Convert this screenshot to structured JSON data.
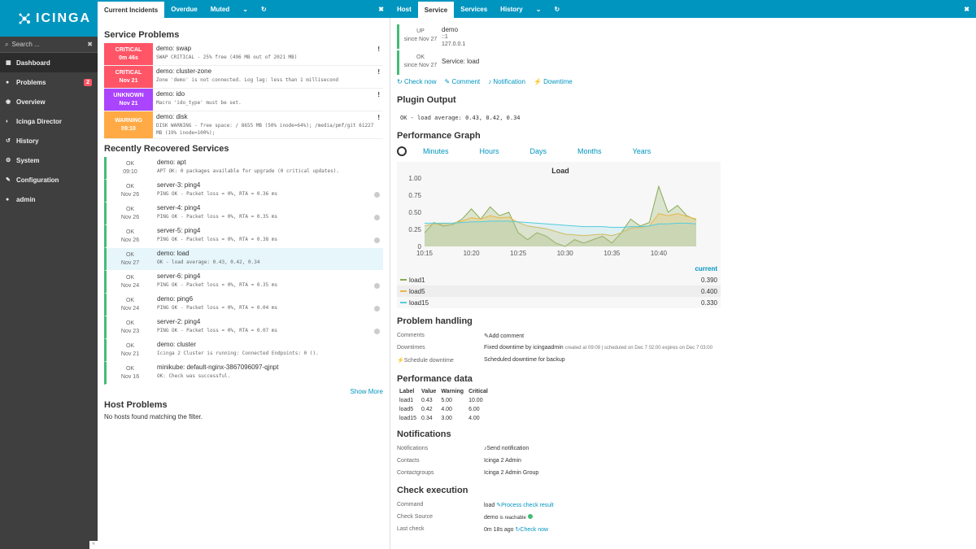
{
  "app": {
    "logo": "ICINGA"
  },
  "sidebar": {
    "search_placeholder": "Search ...",
    "items": [
      {
        "label": "Dashboard",
        "icon": "dashboard-icon",
        "active": true
      },
      {
        "label": "Problems",
        "icon": "problems-icon",
        "badge": "2"
      },
      {
        "label": "Overview",
        "icon": "overview-icon"
      },
      {
        "label": "Icinga Director",
        "icon": "director-icon"
      },
      {
        "label": "History",
        "icon": "history-icon"
      },
      {
        "label": "System",
        "icon": "system-icon"
      },
      {
        "label": "Configuration",
        "icon": "wrench-icon"
      },
      {
        "label": "admin",
        "icon": "user-icon"
      }
    ]
  },
  "tabs_left": [
    "Current Incidents",
    "Overdue",
    "Muted"
  ],
  "tabs_right": [
    "Host",
    "Service",
    "Services",
    "History"
  ],
  "service_problems": {
    "title": "Service Problems",
    "rows": [
      {
        "state": "CRITICAL",
        "since": "0m 46s",
        "name": "demo: swap",
        "output": "SWAP CRITICAL - 25% free (496 MB out of 2021 MB)"
      },
      {
        "state": "CRITICAL",
        "since": "Nov 21",
        "name": "demo: cluster-zone",
        "output": "Zone 'demo' is not connected. Log lag: less than 1 millisecond"
      },
      {
        "state": "UNKNOWN",
        "since": "Nov 21",
        "name": "demo: ido",
        "output": "Macro 'ido_type' must be set."
      },
      {
        "state": "WARNING",
        "since": "09:10",
        "name": "demo: disk",
        "output": "DISK WARNING - free space: / 8655 MB (50% inode=64%); /media/pmf/git 61227 MB (19% inode=100%);"
      }
    ]
  },
  "recovered": {
    "title": "Recently Recovered Services",
    "show_more": "Show More",
    "rows": [
      {
        "state": "OK",
        "since": "09:10",
        "name": "demo: apt",
        "output": "APT OK: 0 packages available for upgrade (0 critical updates)."
      },
      {
        "state": "OK",
        "since": "Nov 26",
        "name": "server-3: ping4",
        "output": "PING OK - Packet loss = 0%, RTA = 0.36 ms"
      },
      {
        "state": "OK",
        "since": "Nov 26",
        "name": "server-4: ping4",
        "output": "PING OK - Packet loss = 0%, RTA = 0.35 ms"
      },
      {
        "state": "OK",
        "since": "Nov 26",
        "name": "server-5: ping4",
        "output": "PING OK - Packet loss = 0%, RTA = 0.38 ms"
      },
      {
        "state": "OK",
        "since": "Nov 27",
        "name": "demo: load",
        "output": "OK - load average: 0.43, 0.42, 0.34"
      },
      {
        "state": "OK",
        "since": "Nov 24",
        "name": "server-6: ping4",
        "output": "PING OK - Packet loss = 0%, RTA = 0.35 ms"
      },
      {
        "state": "OK",
        "since": "Nov 24",
        "name": "demo: ping6",
        "output": "PING OK - Packet loss = 0%, RTA = 0.04 ms"
      },
      {
        "state": "OK",
        "since": "Nov 23",
        "name": "server-2: ping4",
        "output": "PING OK - Packet loss = 0%, RTA = 0.07 ms"
      },
      {
        "state": "OK",
        "since": "Nov 21",
        "name": "demo: cluster",
        "output": "Icinga 2 Cluster is running: Connected Endpoints: 0 ()."
      },
      {
        "state": "OK",
        "since": "Nov 16",
        "name": "minikube: default-nginx-3867096097-qjnpt",
        "output": "OK: Check was successful."
      }
    ]
  },
  "host_problems": {
    "title": "Host Problems",
    "empty": "No hosts found matching the filter."
  },
  "detail": {
    "host_state": "UP",
    "host_since": "since Nov 27",
    "host_name": "demo",
    "host_v6": "::1",
    "host_v4": "127.0.0.1",
    "svc_state": "OK",
    "svc_since": "since Nov 27",
    "svc_name": "Service: load",
    "actions": [
      "Check now",
      "Comment",
      "Notification",
      "Downtime"
    ],
    "plugin_output_title": "Plugin Output",
    "plugin_output": "OK - load average: 0.43, 0.42, 0.34",
    "perf_graph_title": "Performance Graph",
    "ranges": [
      "Minutes",
      "Hours",
      "Days",
      "Months",
      "Years"
    ],
    "legend_header": "current",
    "legend": [
      {
        "name": "load1",
        "value": "0.390",
        "color": "#88aa55"
      },
      {
        "name": "load5",
        "value": "0.400",
        "color": "#e8b84a"
      },
      {
        "name": "load15",
        "value": "0.330",
        "color": "#55ccdd"
      }
    ]
  },
  "chart_data": {
    "type": "line",
    "title": "Load",
    "x": [
      "10:15",
      "10:16",
      "10:17",
      "10:18",
      "10:19",
      "10:20",
      "10:21",
      "10:22",
      "10:23",
      "10:24",
      "10:25",
      "10:26",
      "10:27",
      "10:28",
      "10:29",
      "10:30",
      "10:31",
      "10:32",
      "10:33",
      "10:34",
      "10:35",
      "10:36",
      "10:37",
      "10:38",
      "10:39",
      "10:40",
      "10:41",
      "10:42",
      "10:43",
      "10:44"
    ],
    "xticks": [
      "10:15",
      "10:20",
      "10:25",
      "10:30",
      "10:35",
      "10:40"
    ],
    "yticks": [
      "0",
      "0.25",
      "0.50",
      "0.75",
      "1.00"
    ],
    "ylim": [
      0,
      1.0
    ],
    "series": [
      {
        "name": "load1",
        "values": [
          0.2,
          0.35,
          0.3,
          0.32,
          0.4,
          0.55,
          0.4,
          0.58,
          0.45,
          0.5,
          0.2,
          0.1,
          0.2,
          0.15,
          0.05,
          0.0,
          0.1,
          0.05,
          0.1,
          0.15,
          0.05,
          0.2,
          0.4,
          0.3,
          0.35,
          0.88,
          0.5,
          0.6,
          0.45,
          0.39
        ]
      },
      {
        "name": "load5",
        "values": [
          0.3,
          0.33,
          0.33,
          0.34,
          0.37,
          0.42,
          0.4,
          0.45,
          0.42,
          0.43,
          0.35,
          0.3,
          0.28,
          0.26,
          0.22,
          0.18,
          0.17,
          0.16,
          0.17,
          0.18,
          0.16,
          0.2,
          0.27,
          0.28,
          0.3,
          0.48,
          0.45,
          0.48,
          0.44,
          0.4
        ]
      },
      {
        "name": "load15",
        "values": [
          0.34,
          0.34,
          0.34,
          0.34,
          0.35,
          0.36,
          0.36,
          0.37,
          0.37,
          0.37,
          0.36,
          0.35,
          0.34,
          0.33,
          0.32,
          0.31,
          0.3,
          0.29,
          0.29,
          0.29,
          0.28,
          0.28,
          0.29,
          0.29,
          0.3,
          0.33,
          0.33,
          0.34,
          0.34,
          0.33
        ]
      }
    ]
  },
  "problem_handling": {
    "title": "Problem handling",
    "comments_label": "Comments",
    "add_comment": "Add comment",
    "downtimes_label": "Downtimes",
    "schedule_downtime": "Schedule downtime",
    "downtime_text": "Fixed downtime by icingaadmin",
    "downtime_meta": "created at 09:09 | scheduled on Dec 7 02:00 expires on Dec 7 03:00",
    "downtime_comment": "Scheduled downtime for backup"
  },
  "perfdata": {
    "title": "Performance data",
    "headers": [
      "Label",
      "Value",
      "Warning",
      "Critical"
    ],
    "rows": [
      [
        "load1",
        "0.43",
        "5.00",
        "10.00"
      ],
      [
        "load5",
        "0.42",
        "4.00",
        "6.00"
      ],
      [
        "load15",
        "0.34",
        "3.00",
        "4.00"
      ]
    ]
  },
  "notifications": {
    "title": "Notifications",
    "rows": [
      {
        "k": "Notifications",
        "v": "Send notification",
        "link": true
      },
      {
        "k": "Contacts",
        "v": "Icinga 2 Admin"
      },
      {
        "k": "Contactgroups",
        "v": "Icinga 2 Admin Group"
      }
    ]
  },
  "check_exec": {
    "title": "Check execution",
    "command_label": "Command",
    "command": "load",
    "process": "Process check result",
    "source_label": "Check Source",
    "source": "demo",
    "reachable": "is reachable",
    "last_label": "Last check",
    "last": "0m 18s ago",
    "check_now": "Check now"
  }
}
